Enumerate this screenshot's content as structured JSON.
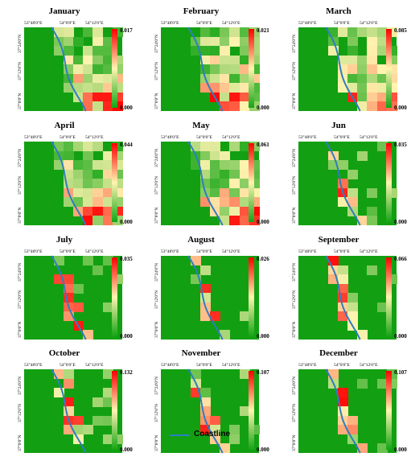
{
  "lon_ticks": [
    "53°48'0\"E",
    "54°0'0\"E",
    "54°12'0\"E"
  ],
  "lat_ticks": [
    "37°24'0\"N",
    "37°12'0\"N",
    "37°0'0\"N"
  ],
  "legend": {
    "label": "Coastline",
    "color": "#2f7ec0"
  },
  "colors": {
    "low": "#14a514",
    "mid": "#fff4b0",
    "high": "#ff0000"
  },
  "panels": [
    {
      "title": "January",
      "max": "0.017",
      "min": "0.000"
    },
    {
      "title": "February",
      "max": "0.021",
      "min": "0.000"
    },
    {
      "title": "March",
      "max": "0.085",
      "min": "0.000"
    },
    {
      "title": "April",
      "max": "0.044",
      "min": "0.000"
    },
    {
      "title": "May",
      "max": "0.061",
      "min": "0.000"
    },
    {
      "title": "Jun",
      "max": "0.035",
      "min": "0.000"
    },
    {
      "title": "July",
      "max": "0.035",
      "min": "0.000"
    },
    {
      "title": "August",
      "max": "0.026",
      "min": "0.000"
    },
    {
      "title": "September",
      "max": "0.066",
      "min": "0.000"
    },
    {
      "title": "October",
      "max": "0.132",
      "min": "0.000"
    },
    {
      "title": "November",
      "max": "0.107",
      "min": "0.000"
    },
    {
      "title": "December",
      "max": "0.107",
      "min": "0.000"
    }
  ]
}
